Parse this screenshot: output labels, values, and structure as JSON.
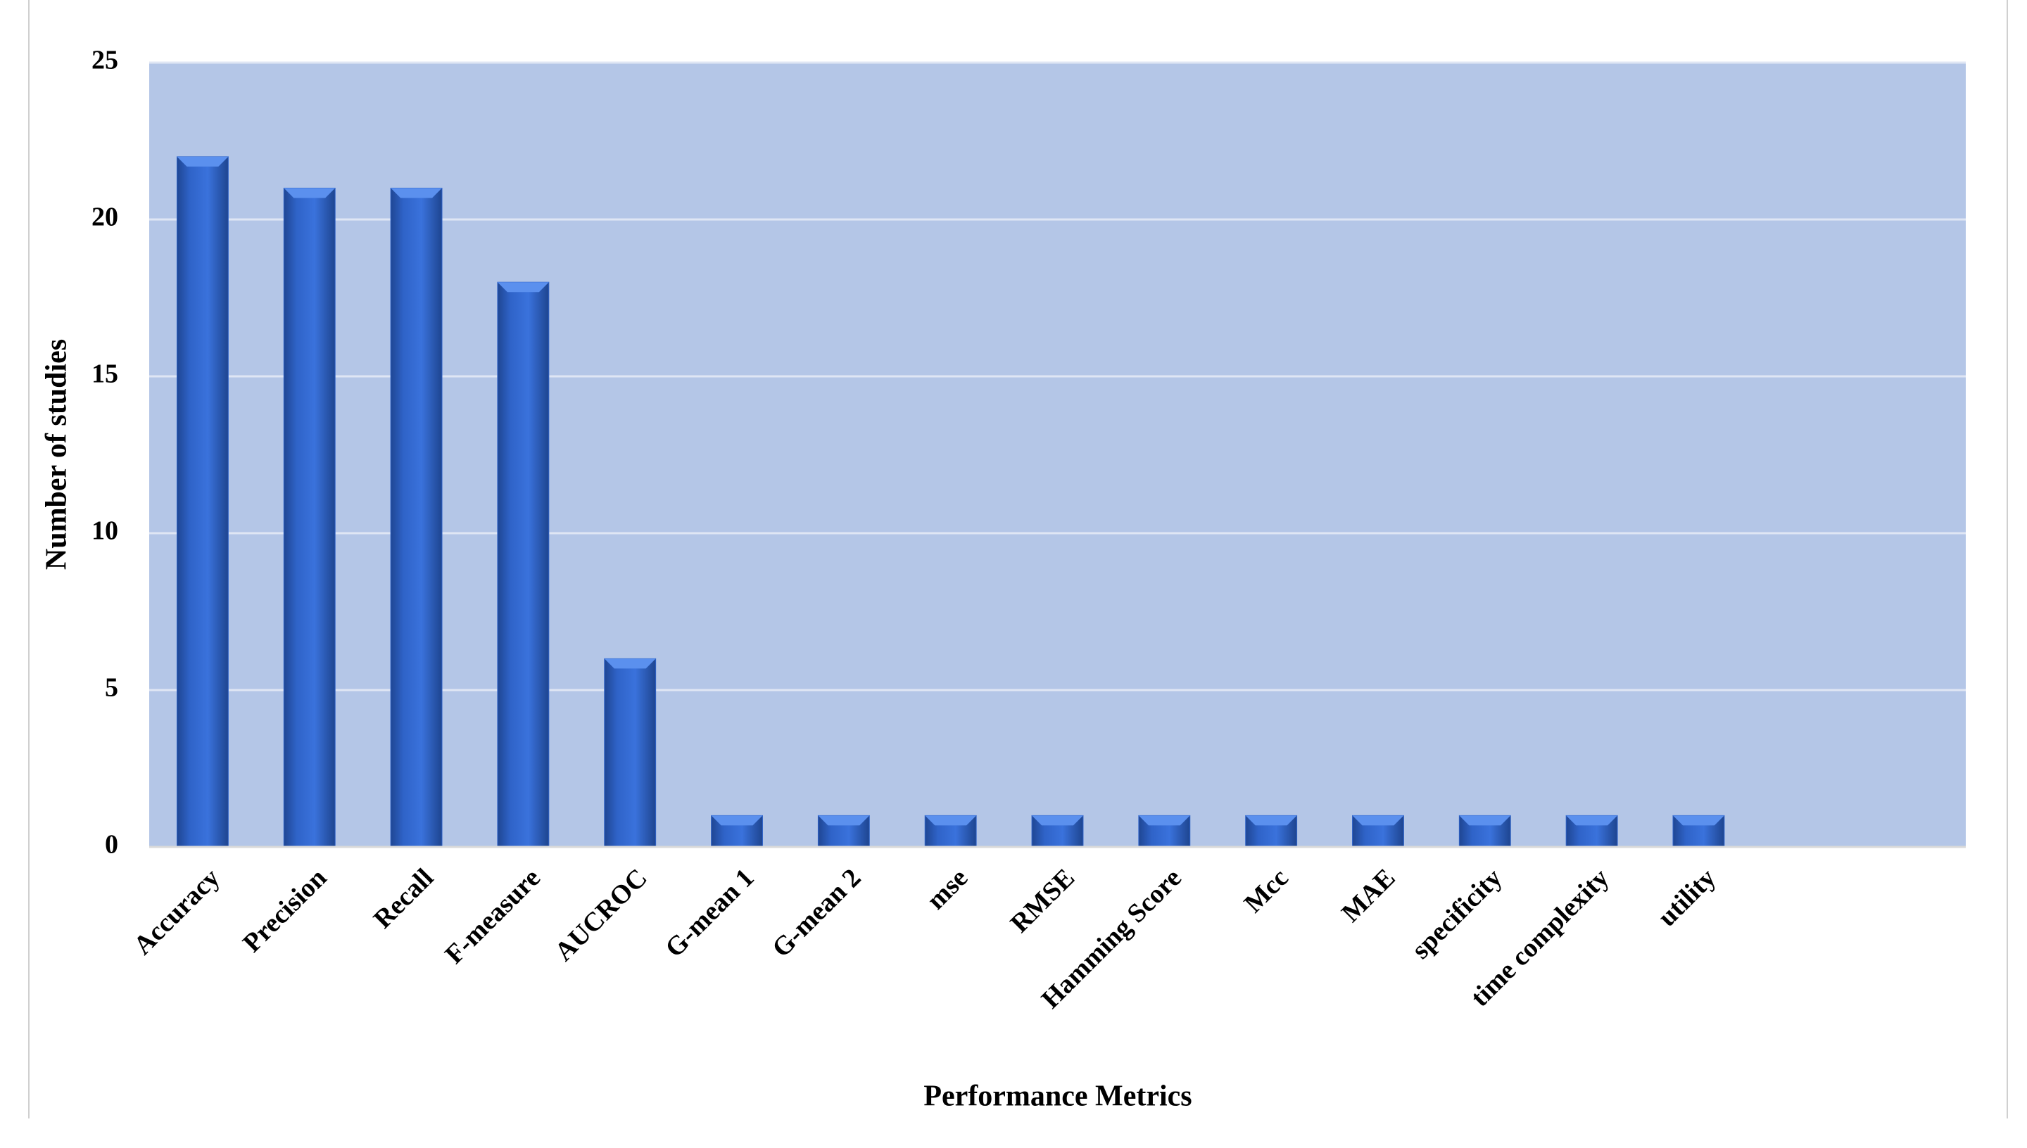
{
  "chart_data": {
    "type": "bar",
    "x_label": "Performance Metrics",
    "y_label": "Number of studies",
    "categories": [
      "Accuracy",
      "Precision",
      "Recall",
      "F-measure",
      "AUCROC",
      "G-mean 1",
      "G-mean 2",
      "mse",
      "RMSE",
      "Hamming Score",
      "Mcc",
      "MAE",
      "specificity",
      "time complexity",
      "utility",
      null,
      null
    ],
    "values": [
      22,
      21,
      21,
      18,
      6,
      1,
      1,
      1,
      1,
      1,
      1,
      1,
      1,
      1,
      1,
      null,
      null
    ],
    "color": "#2f63c8",
    "plot_background": "#b4c6e7",
    "ylim": [
      0,
      25
    ],
    "yticks": [
      0,
      5,
      10,
      15,
      20,
      25
    ],
    "grid": true
  }
}
